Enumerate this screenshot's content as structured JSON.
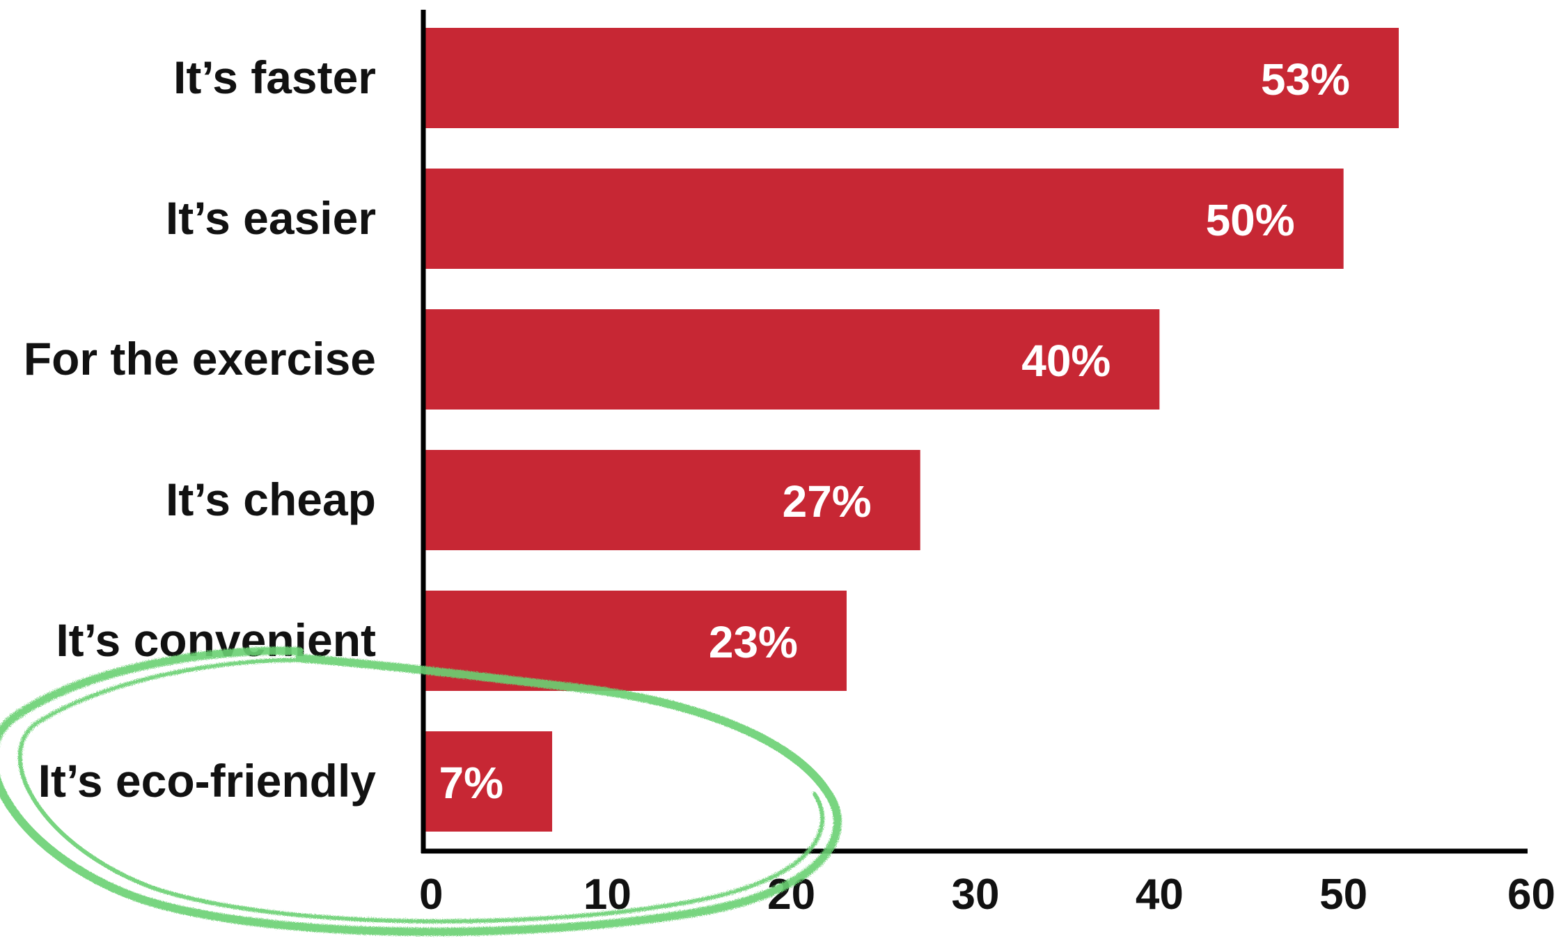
{
  "chart_data": {
    "type": "bar",
    "orientation": "horizontal",
    "title": "",
    "xlabel": "",
    "ylabel": "",
    "categories": [
      "It’s faster",
      "It’s easier",
      "For the exercise",
      "It’s cheap",
      "It’s convenient",
      "It’s eco-friendly"
    ],
    "values": [
      53,
      50,
      40,
      27,
      23,
      7
    ],
    "data_labels": [
      "53%",
      "50%",
      "40%",
      "27%",
      "23%",
      "7%"
    ],
    "xlim": [
      0,
      60
    ],
    "x_ticks": [
      "0",
      "10",
      "20",
      "30",
      "40",
      "50",
      "60"
    ],
    "grid": false,
    "legend": "none",
    "bar_color": "#c72734",
    "highlight": {
      "category": "It’s eco-friendly",
      "style": "hand-drawn ellipse",
      "color": "#6ad173"
    }
  }
}
